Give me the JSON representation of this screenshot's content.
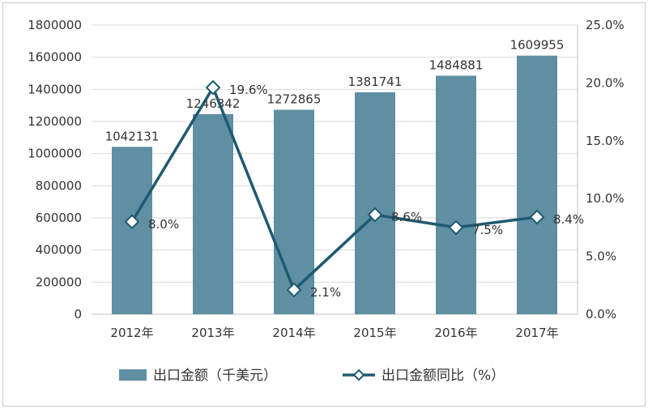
{
  "chart_data": {
    "type": "bar+line",
    "categories": [
      "2012年",
      "2013年",
      "2014年",
      "2015年",
      "2016年",
      "2017年"
    ],
    "series": [
      {
        "name": "出口金额（千美元）",
        "type": "bar",
        "axis": "left",
        "values": [
          1042131,
          1246342,
          1272865,
          1381741,
          1484881,
          1609955
        ],
        "labels": [
          "1042131",
          "1246342",
          "1272865",
          "1381741",
          "1484881",
          "1609955"
        ],
        "color": "#5f8fa3"
      },
      {
        "name": "出口金额同比（%）",
        "type": "line",
        "axis": "right",
        "values": [
          8.0,
          19.6,
          2.1,
          8.6,
          7.5,
          8.4
        ],
        "labels": [
          "8.0%",
          "19.6%",
          "2.1%",
          "8.6%",
          "7.5%",
          "8.4%"
        ],
        "color": "#1f5a70"
      }
    ],
    "left_axis": {
      "ylim": [
        0,
        1800000
      ],
      "ticks": [
        "0",
        "200000",
        "400000",
        "600000",
        "800000",
        "1000000",
        "1200000",
        "1400000",
        "1600000",
        "1800000"
      ]
    },
    "right_axis": {
      "ylim": [
        0,
        25
      ],
      "ticks": [
        "0.0%",
        "5.0%",
        "10.0%",
        "15.0%",
        "20.0%",
        "25.0%"
      ]
    },
    "grid": true,
    "legend": "bottom"
  }
}
